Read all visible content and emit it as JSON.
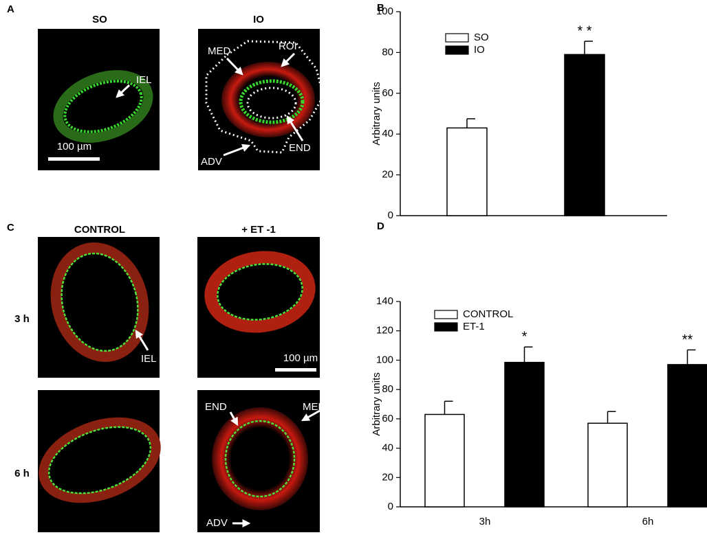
{
  "image_panels": [
    {
      "label": "A",
      "columns": [
        "SO",
        "IO"
      ],
      "annotations": [
        "IEL",
        "100 µm",
        "MED",
        "ROI",
        "END",
        "ADV"
      ]
    },
    {
      "label": "C",
      "columns": [
        "CONTROL",
        "+ ET -1"
      ],
      "rows": [
        "3 h",
        "6 h"
      ],
      "annotations": [
        "IEL",
        "100 µm",
        "END",
        "MED",
        "ADV"
      ]
    }
  ],
  "chart_data": [
    {
      "type": "bar",
      "label": "B",
      "ylabel": "Arbitrary units",
      "ylim": [
        0,
        100
      ],
      "yticks": [
        0,
        20,
        40,
        60,
        80,
        100
      ],
      "legend": "upper left",
      "series": [
        {
          "name": "SO",
          "color": "#ffffff",
          "values": [
            43
          ],
          "errors": [
            4.5
          ]
        },
        {
          "name": "IO",
          "color": "#000000",
          "values": [
            79
          ],
          "errors": [
            6.5
          ],
          "annotations": [
            "* *"
          ]
        }
      ]
    },
    {
      "type": "bar",
      "label": "D",
      "ylabel": "Arbitrary units",
      "ylim": [
        0,
        140
      ],
      "yticks": [
        0,
        20,
        40,
        60,
        80,
        100,
        120,
        140
      ],
      "legend": "upper left",
      "categories": [
        "3h",
        "6h"
      ],
      "series": [
        {
          "name": "CONTROL",
          "color": "#ffffff",
          "values": [
            63,
            57
          ],
          "errors": [
            9,
            8
          ]
        },
        {
          "name": "ET-1",
          "color": "#000000",
          "values": [
            98.5,
            97
          ],
          "errors": [
            10.5,
            10
          ],
          "annotations": [
            "*",
            "**"
          ]
        }
      ]
    }
  ]
}
